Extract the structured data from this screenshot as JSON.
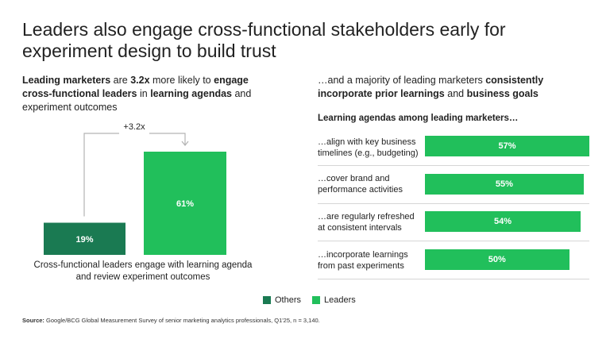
{
  "title": "Leaders also engage cross-functional stakeholders early for experiment design to build trust",
  "left_heading": {
    "p1_bold": "Leading marketers",
    "p2": " are ",
    "p3_bold": "3.2x",
    "p4": " more likely to ",
    "p5_bold": "engage cross-functional leaders",
    "p6": " in ",
    "p7_bold": "learning agendas",
    "p8": " and experiment outcomes"
  },
  "right_heading": {
    "p1": "…and a majority of leading marketers ",
    "p2_bold": "consistently incorporate prior learnings",
    "p3": " and ",
    "p4_bold": "business goals"
  },
  "colors": {
    "others": "#1a7a52",
    "leaders": "#21bf5b",
    "connector": "#b3b3b3"
  },
  "chart_data": [
    {
      "type": "bar",
      "categories": [
        "Others",
        "Leaders"
      ],
      "values": [
        19,
        61
      ],
      "data_labels": [
        "19%",
        "61%"
      ],
      "ylim": [
        0,
        61
      ],
      "annotation": "+3.2x",
      "caption": "Cross-functional leaders engage with learning agenda and review experiment outcomes"
    },
    {
      "type": "bar",
      "orientation": "horizontal",
      "title": "Learning agendas among leading marketers…",
      "categories": [
        "…align with key business timelines (e.g., budgeting)",
        "…cover brand and performance activities",
        "…are regularly refreshed at consistent intervals",
        "…incorporate learnings from past experiments"
      ],
      "values": [
        57,
        55,
        54,
        50
      ],
      "data_labels": [
        "57%",
        "55%",
        "54%",
        "50%"
      ],
      "xlim": [
        0,
        57
      ]
    }
  ],
  "legend": {
    "others": "Others",
    "leaders": "Leaders"
  },
  "source": {
    "label": "Source:",
    "text": " Google/BCG Global Measurement Survey of senior marketing analytics professionals, Q1'25, n = 3,140."
  }
}
